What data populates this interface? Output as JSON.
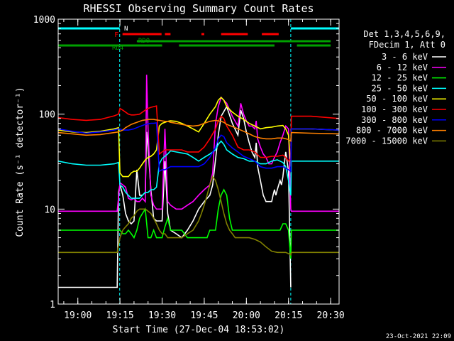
{
  "chart_data": {
    "type": "line",
    "title": "RHESSI Observing Summary Count Rates",
    "xlabel": "Start Time (27-Dec-04 18:53:02)",
    "ylabel": "Count Rate (s⁻¹ detector⁻¹)",
    "yscale": "log",
    "ylim": [
      1,
      1000
    ],
    "xlim": [
      0,
      100
    ],
    "x_ticks": [
      {
        "label": "19:00",
        "x": 7
      },
      {
        "label": "19:15",
        "x": 22
      },
      {
        "label": "19:30",
        "x": 37
      },
      {
        "label": "19:45",
        "x": 52
      },
      {
        "label": "20:00",
        "x": 67
      },
      {
        "label": "20:15",
        "x": 82
      },
      {
        "label": "20:30",
        "x": 97
      }
    ],
    "y_ticks": [
      {
        "label": "1",
        "value": 1
      },
      {
        "label": "10",
        "value": 10
      },
      {
        "label": "100",
        "value": 100
      },
      {
        "label": "1000",
        "value": 1000
      }
    ],
    "legend_header": [
      "Det 1,3,4,5,6,9,",
      "FDecim 1, Att 0"
    ],
    "legend_position": "right",
    "footer_date": "23-Oct-2021 22:09",
    "flag_labels": {
      "night": "N",
      "flare": "F",
      "rd0": "RD0",
      "rd4": "RD4"
    },
    "flag_colors": {
      "night": "#00ffff",
      "flare": "#ff0000",
      "rd": "#00a000"
    },
    "night_intervals": [
      [
        0,
        21.9
      ],
      [
        82.8,
        100
      ]
    ],
    "flare_intervals": [
      [
        22.9,
        36.8
      ],
      [
        38,
        40
      ],
      [
        51,
        52
      ],
      [
        58,
        67.5
      ],
      [
        72.5,
        78.5
      ]
    ],
    "rd0_intervals": [
      [
        28,
        97
      ]
    ],
    "rd4_intervals": [
      [
        0,
        37
      ],
      [
        43,
        77
      ],
      [
        85,
        97
      ]
    ],
    "series": [
      {
        "name": "3 - 6 keV",
        "color": "#ffffff",
        "x": [
          0,
          21,
          21.5,
          22,
          23,
          24,
          25,
          26,
          27,
          28,
          29,
          30,
          31,
          31.5,
          32,
          33,
          34,
          35,
          36,
          37,
          38,
          39,
          40,
          42,
          44,
          46,
          48,
          50,
          52,
          54,
          55,
          57,
          58,
          60,
          62,
          64,
          65,
          66,
          67,
          68,
          69,
          70,
          70.5,
          71,
          72,
          73,
          74,
          75,
          76,
          76.5,
          77,
          77.5,
          78,
          79,
          79.5,
          80,
          80.5,
          81,
          82,
          82.8
        ],
        "y": [
          1.5,
          1.5,
          15,
          18,
          14,
          9,
          7.5,
          7,
          7.5,
          26,
          14,
          14,
          15,
          65,
          45,
          16,
          8,
          7.5,
          7.5,
          7.5,
          32,
          9,
          6,
          5.5,
          5,
          6,
          7.5,
          10,
          12,
          14,
          18,
          60,
          95,
          120,
          80,
          60,
          110,
          90,
          65,
          50,
          40,
          35,
          50,
          28,
          20,
          14,
          12,
          12,
          12,
          14,
          16,
          14,
          16,
          20,
          18,
          22,
          30,
          40,
          25,
          1.5
        ]
      },
      {
        "name": "6 - 12 keV",
        "color": "#ff00ff",
        "x": [
          0,
          21,
          22,
          23,
          24,
          25,
          26,
          27,
          28,
          29,
          30,
          31,
          31.5,
          32,
          33,
          34,
          35,
          36,
          37,
          38,
          39,
          40,
          42,
          44,
          46,
          48,
          50,
          52,
          54,
          55,
          56,
          57,
          58,
          60,
          62,
          64,
          65,
          66,
          67,
          68,
          69,
          70,
          70.5,
          71,
          72,
          73,
          74,
          75,
          76,
          77,
          78,
          79,
          80,
          81,
          82,
          82.8,
          83,
          90,
          100
        ],
        "y": [
          9.5,
          9.5,
          19,
          18,
          17,
          13,
          12.5,
          13,
          12,
          12,
          13,
          12,
          260,
          70,
          14,
          11,
          10,
          10,
          10,
          70,
          12,
          11,
          10,
          10,
          11,
          12,
          14,
          16,
          18,
          24,
          80,
          120,
          150,
          130,
          95,
          75,
          130,
          100,
          85,
          75,
          75,
          70,
          85,
          55,
          45,
          38,
          35,
          30,
          30,
          35,
          40,
          50,
          60,
          75,
          70,
          10,
          9.5,
          9.5,
          9.5
        ]
      },
      {
        "name": "12 - 25 keV",
        "color": "#00ff00",
        "x": [
          0,
          21,
          22,
          23,
          24,
          25,
          26,
          27,
          28,
          29,
          30,
          31,
          32,
          33,
          34,
          35,
          36,
          37,
          38,
          39,
          40,
          42,
          44,
          46,
          48,
          50,
          51,
          52,
          53,
          54,
          55,
          56,
          57,
          58,
          59,
          60,
          61,
          62,
          63,
          64,
          65,
          66,
          67,
          68,
          69,
          70,
          71,
          72,
          73,
          74,
          75,
          76,
          77,
          78,
          79,
          80,
          81,
          82,
          82.8,
          83,
          90,
          100
        ],
        "y": [
          6,
          6,
          6,
          5.5,
          5.5,
          6,
          5.5,
          5,
          6,
          8,
          9,
          10,
          5,
          5,
          6,
          5,
          5,
          5,
          6.5,
          8,
          6,
          6,
          6,
          5,
          5,
          5,
          5,
          5,
          5,
          6,
          6,
          6,
          10,
          14,
          16,
          14,
          8,
          6,
          6,
          6,
          6,
          6,
          6,
          6,
          6,
          6,
          6,
          6,
          6,
          6,
          6,
          6,
          6,
          6,
          6,
          7,
          7,
          6,
          3,
          6,
          6,
          6
        ]
      },
      {
        "name": "25 - 50 keV",
        "color": "#00ffff",
        "x": [
          0,
          5,
          10,
          15,
          20,
          21.5,
          22,
          23,
          24,
          25,
          26,
          27,
          28,
          29,
          30,
          31,
          32,
          33,
          34,
          35,
          36,
          37,
          38,
          39,
          40,
          42,
          44,
          46,
          48,
          50,
          52,
          54,
          56,
          57,
          58,
          59,
          60,
          62,
          64,
          66,
          68,
          70,
          72,
          74,
          76,
          78,
          80,
          81,
          82,
          82.8,
          83,
          90,
          100
        ],
        "y": [
          32,
          30,
          29,
          29,
          30,
          31,
          18,
          17,
          15,
          14,
          13,
          13,
          13,
          13,
          14,
          15,
          15,
          16,
          16,
          17,
          30,
          34,
          36,
          38,
          41,
          40,
          39,
          38,
          35,
          32,
          35,
          38,
          42,
          48,
          52,
          48,
          42,
          38,
          35,
          34,
          32,
          32,
          30,
          30,
          32,
          33,
          31,
          28,
          20,
          14,
          32,
          32,
          32
        ]
      },
      {
        "name": "50 - 100 keV",
        "color": "#ffff00",
        "x": [
          0,
          5,
          10,
          15,
          20,
          21.5,
          22,
          23,
          24,
          25,
          26,
          27,
          28,
          29,
          30,
          31,
          32,
          33,
          34,
          35,
          36,
          37,
          38,
          39,
          40,
          42,
          44,
          46,
          48,
          50,
          52,
          54,
          56,
          57,
          58,
          59,
          60,
          62,
          64,
          66,
          68,
          70,
          72,
          74,
          76,
          78,
          80,
          81,
          82,
          82.8,
          83,
          90,
          100
        ],
        "y": [
          68,
          65,
          64,
          66,
          70,
          72,
          24,
          22,
          22,
          22,
          24,
          25,
          25,
          27,
          30,
          33,
          35,
          36,
          38,
          42,
          75,
          80,
          82,
          84,
          85,
          84,
          80,
          75,
          70,
          65,
          80,
          100,
          120,
          140,
          150,
          140,
          120,
          105,
          95,
          88,
          80,
          75,
          70,
          72,
          73,
          75,
          76,
          70,
          60,
          28,
          70,
          70,
          68
        ]
      },
      {
        "name": "100 - 300 keV",
        "color": "#ff0000",
        "x": [
          0,
          5,
          10,
          15,
          20,
          21.5,
          22,
          23,
          24,
          25,
          26,
          27,
          28,
          29,
          30,
          31,
          32,
          33,
          34,
          35,
          36,
          37,
          38,
          39,
          40,
          42,
          44,
          46,
          48,
          50,
          52,
          54,
          56,
          57,
          58,
          59,
          60,
          62,
          64,
          66,
          68,
          70,
          72,
          74,
          76,
          78,
          80,
          81,
          82,
          82.8,
          83,
          90,
          100
        ],
        "y": [
          92,
          88,
          86,
          88,
          96,
          100,
          115,
          110,
          105,
          100,
          98,
          98,
          99,
          100,
          105,
          110,
          115,
          118,
          120,
          122,
          38,
          40,
          42,
          42,
          42,
          42,
          42,
          40,
          40,
          40,
          45,
          55,
          70,
          85,
          95,
          90,
          75,
          60,
          45,
          42,
          42,
          40,
          35,
          35,
          36,
          36,
          37,
          35,
          32,
          34,
          95,
          95,
          90
        ]
      },
      {
        "name": "300 - 800 keV",
        "color": "#0000ff",
        "x": [
          0,
          5,
          10,
          15,
          20,
          21.5,
          22,
          23,
          24,
          25,
          26,
          27,
          28,
          29,
          30,
          31,
          32,
          33,
          34,
          35,
          36,
          37,
          38,
          39,
          40,
          42,
          44,
          46,
          48,
          50,
          52,
          54,
          56,
          57,
          58,
          59,
          60,
          62,
          64,
          66,
          68,
          70,
          72,
          74,
          76,
          78,
          80,
          81,
          82,
          82.8,
          83,
          90,
          100
        ],
        "y": [
          70,
          66,
          63,
          65,
          68,
          70,
          70,
          68,
          68,
          68,
          69,
          70,
          72,
          74,
          76,
          78,
          79,
          80,
          80,
          81,
          25,
          26,
          26,
          27,
          28,
          28,
          28,
          28,
          28,
          28,
          30,
          35,
          45,
          55,
          60,
          58,
          50,
          44,
          40,
          36,
          34,
          32,
          28,
          27,
          27,
          28,
          28,
          27,
          26,
          25,
          70,
          70,
          68
        ]
      },
      {
        "name": "800 - 7000 keV",
        "color": "#ff8000",
        "x": [
          0,
          5,
          10,
          15,
          20,
          21.5,
          22,
          23,
          24,
          25,
          26,
          27,
          28,
          29,
          30,
          31,
          32,
          33,
          34,
          35,
          36,
          37,
          38,
          39,
          40,
          42,
          44,
          46,
          48,
          50,
          52,
          54,
          56,
          57,
          58,
          59,
          60,
          62,
          64,
          66,
          68,
          70,
          72,
          74,
          76,
          78,
          80,
          81,
          82,
          82.8,
          83,
          90,
          100
        ],
        "y": [
          64,
          62,
          60,
          61,
          64,
          65,
          66,
          68,
          72,
          75,
          78,
          80,
          82,
          84,
          86,
          87,
          88,
          88,
          88,
          87,
          86,
          85,
          84,
          84,
          82,
          80,
          78,
          76,
          75,
          76,
          80,
          84,
          86,
          85,
          84,
          82,
          78,
          74,
          70,
          66,
          62,
          58,
          56,
          55,
          55,
          56,
          56,
          55,
          54,
          52,
          64,
          63,
          62
        ]
      },
      {
        "name": "7000 - 15000 keV",
        "color": "#808000",
        "x": [
          0,
          5,
          10,
          15,
          20,
          21,
          22,
          23,
          24,
          25,
          26,
          27,
          28,
          29,
          30,
          31,
          32,
          33,
          34,
          35,
          36,
          37,
          38,
          39,
          40,
          42,
          44,
          46,
          48,
          50,
          51,
          52,
          53,
          54,
          55,
          56,
          57,
          58,
          59,
          60,
          61,
          62,
          63,
          64,
          66,
          68,
          70,
          72,
          74,
          76,
          78,
          80,
          81,
          82,
          82.8,
          83,
          90,
          100
        ],
        "y": [
          3.5,
          3.5,
          3.5,
          3.5,
          3.5,
          3.5,
          5,
          6,
          6.5,
          7,
          8,
          8.5,
          9.5,
          10,
          10,
          10,
          9.5,
          9,
          8,
          7,
          6,
          5.5,
          5.5,
          5,
          5,
          5,
          5,
          5.5,
          6,
          7.5,
          9,
          11,
          14,
          18,
          22,
          20,
          16,
          12,
          9,
          7,
          6,
          5.5,
          5,
          5,
          5,
          5,
          4.8,
          4.5,
          4,
          3.6,
          3.5,
          3.5,
          3.5,
          3.4,
          3.3,
          3.5,
          3.5,
          3.5
        ]
      }
    ]
  }
}
